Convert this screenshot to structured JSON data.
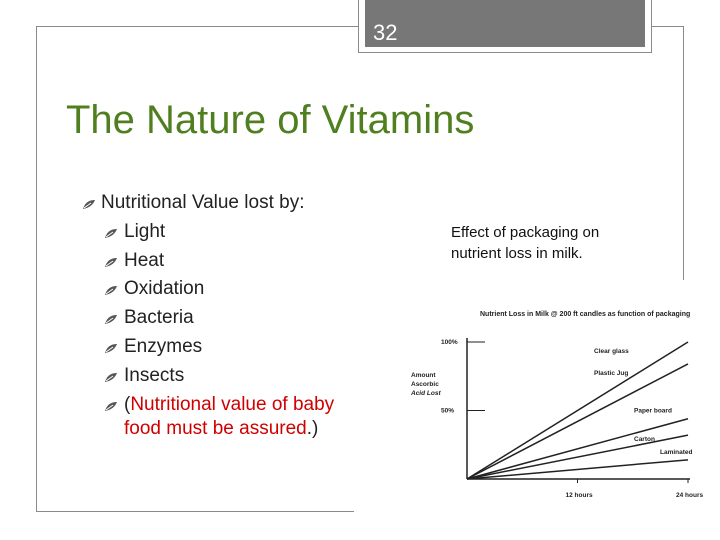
{
  "slide": {
    "number": "32",
    "title": "The Nature of Vitamins",
    "bullets": {
      "main": "Nutritional Value lost by:",
      "items": [
        "Light",
        "Heat",
        "Oxidation",
        "Bacteria",
        "Enzymes",
        "Insects"
      ],
      "note_prefix": "(",
      "note_red_line1": "Nutritional value of baby",
      "note_red_line2": "food must be assured",
      "note_suffix": ".)"
    },
    "caption": {
      "line1": "Effect of packaging on",
      "line2": "nutrient loss in milk."
    },
    "icon": "recycle-leaf-bullet-icon"
  },
  "chart_data": {
    "type": "line",
    "title": "Nutrient Loss in Milk @ 200 ft candles as function of packaging",
    "ylabel_lines": [
      "Amount",
      "Ascorbic",
      "Acid Lost"
    ],
    "y_ticks": [
      "100%",
      "50%"
    ],
    "x_ticks": [
      "12 hours",
      "24 hours"
    ],
    "x": [
      0,
      24
    ],
    "xlim": [
      0,
      24
    ],
    "ylim": [
      0,
      100
    ],
    "series": [
      {
        "name": "Clear glass",
        "values": [
          0,
          100
        ]
      },
      {
        "name": "Plastic Jug",
        "values": [
          0,
          84
        ]
      },
      {
        "name": "Paper board",
        "values": [
          0,
          44
        ]
      },
      {
        "name": "Carton",
        "values": [
          0,
          32
        ]
      },
      {
        "name": "Laminated",
        "values": [
          0,
          14
        ]
      }
    ],
    "line_color": "#222222"
  }
}
